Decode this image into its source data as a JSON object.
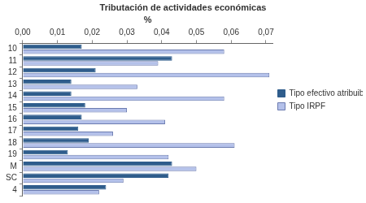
{
  "chart_data": {
    "type": "bar",
    "title": "Tributación de actividades económicas",
    "x_label": "%",
    "orientation": "horizontal",
    "categories": [
      "10",
      "11",
      "12",
      "13",
      "14",
      "15",
      "16",
      "17",
      "18",
      "19",
      "M",
      "SC",
      "4"
    ],
    "series": [
      {
        "name": "Tipo efectivo atribuible",
        "color": "#2f5d8c",
        "values": [
          0.017,
          0.043,
          0.021,
          0.014,
          0.014,
          0.018,
          0.017,
          0.016,
          0.019,
          0.013,
          0.043,
          0.042,
          0.024
        ]
      },
      {
        "name": "Tipo IRPF",
        "color": "#b4c1ea",
        "values": [
          0.058,
          0.039,
          0.071,
          0.033,
          0.058,
          0.03,
          0.041,
          0.026,
          0.061,
          0.042,
          0.05,
          0.029,
          0.022
        ]
      }
    ],
    "xlim": [
      0,
      0.072
    ],
    "xticks": [
      {
        "value": 0,
        "label": "0,00"
      },
      {
        "value": 0.01,
        "label": "0,01"
      },
      {
        "value": 0.02,
        "label": "0,02"
      },
      {
        "value": 0.03,
        "label": "0,03"
      },
      {
        "value": 0.04,
        "label": "0,04"
      },
      {
        "value": 0.05,
        "label": "0,05"
      },
      {
        "value": 0.06,
        "label": "0,06"
      },
      {
        "value": 0.07,
        "label": "0,07"
      }
    ],
    "grid": false,
    "legend": "right"
  }
}
